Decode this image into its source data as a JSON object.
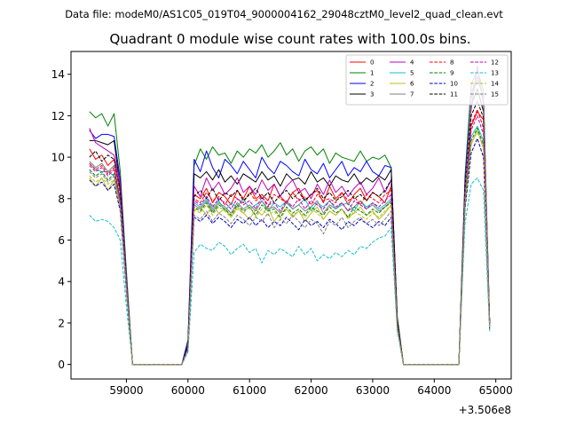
{
  "figure": {
    "suptitle": "Data file: modeM0/AS1C05_019T04_9000004162_29048cztM0_level2_quad_clean.evt",
    "title": "Quadrant 0 module wise count rates with 100.0s bins."
  },
  "chart_data": {
    "type": "line",
    "title": "Quadrant 0 module wise count rates with 100.0s bins.",
    "xlabel": "",
    "ylabel": "",
    "x_offset_label": "+3.506e8",
    "xlim": [
      58100,
      65250
    ],
    "ylim": [
      -0.7,
      15.1
    ],
    "xticks": [
      59000,
      60000,
      61000,
      62000,
      63000,
      64000,
      65000
    ],
    "yticks": [
      0,
      2,
      4,
      6,
      8,
      10,
      12,
      14
    ],
    "grid": false,
    "legend_position": "top-right",
    "x": [
      58400,
      58500,
      58600,
      58700,
      58800,
      58900,
      59000,
      59100,
      59200,
      59300,
      59400,
      59500,
      59600,
      59700,
      59800,
      59900,
      60000,
      60100,
      60200,
      60300,
      60400,
      60500,
      60600,
      60700,
      60800,
      60900,
      61000,
      61100,
      61200,
      61300,
      61400,
      61500,
      61600,
      61700,
      61800,
      61900,
      62000,
      62100,
      62200,
      62300,
      62400,
      62500,
      62600,
      62700,
      62800,
      62900,
      63000,
      63100,
      63200,
      63300,
      63400,
      63500,
      63600,
      63700,
      63800,
      63900,
      64000,
      64100,
      64200,
      64300,
      64400,
      64500,
      64600,
      64700,
      64800,
      64900
    ],
    "series": [
      {
        "name": "0",
        "color": "#ff0000",
        "dash": "solid",
        "values": [
          10.4,
          9.9,
          10.1,
          9.6,
          9.9,
          8.4,
          4.0,
          0.0,
          0.0,
          0.0,
          0.0,
          0.0,
          0.0,
          0.0,
          0.0,
          0.0,
          0.9,
          8.2,
          8.0,
          8.5,
          7.8,
          8.3,
          8.1,
          7.7,
          8.4,
          8.0,
          8.6,
          8.0,
          8.2,
          7.9,
          8.7,
          8.1,
          7.8,
          8.3,
          8.5,
          7.9,
          8.2,
          8.4,
          7.8,
          8.6,
          8.0,
          8.3,
          7.7,
          8.2,
          8.5,
          7.9,
          8.3,
          8.1,
          7.8,
          8.6,
          2.0,
          0.0,
          0.0,
          0.0,
          0.0,
          0.0,
          0.0,
          0.0,
          0.0,
          0.0,
          0.0,
          8.0,
          11.5,
          12.2,
          11.8,
          2.0
        ]
      },
      {
        "name": "1",
        "color": "#008000",
        "dash": "solid",
        "values": [
          12.2,
          11.9,
          12.1,
          11.5,
          12.1,
          9.3,
          4.5,
          0.0,
          0.0,
          0.0,
          0.0,
          0.0,
          0.0,
          0.0,
          0.0,
          0.0,
          1.2,
          9.6,
          10.4,
          9.9,
          10.5,
          10.1,
          10.2,
          9.7,
          10.3,
          10.0,
          10.4,
          10.2,
          10.6,
          10.0,
          10.3,
          10.7,
          10.1,
          10.4,
          9.8,
          10.3,
          10.5,
          10.1,
          10.4,
          9.7,
          10.2,
          10.0,
          9.9,
          9.8,
          10.3,
          9.8,
          10.0,
          9.9,
          10.1,
          9.5,
          2.3,
          0.0,
          0.0,
          0.0,
          0.0,
          0.0,
          0.0,
          0.0,
          0.0,
          0.0,
          0.0,
          9.1,
          13.5,
          14.2,
          13.2,
          2.0
        ]
      },
      {
        "name": "2",
        "color": "#0000ff",
        "dash": "solid",
        "values": [
          11.3,
          10.9,
          11.1,
          11.1,
          11.0,
          8.9,
          4.2,
          0.0,
          0.0,
          0.0,
          0.0,
          0.0,
          0.0,
          0.0,
          0.0,
          0.0,
          1.1,
          9.9,
          9.3,
          10.3,
          9.5,
          9.0,
          9.9,
          9.6,
          9.2,
          9.8,
          9.4,
          9.0,
          10.0,
          9.5,
          9.2,
          9.8,
          9.6,
          9.3,
          9.1,
          9.9,
          9.4,
          9.2,
          9.7,
          9.0,
          9.4,
          9.8,
          9.1,
          9.5,
          9.3,
          9.8,
          9.3,
          9.1,
          9.6,
          9.5,
          2.1,
          0.0,
          0.0,
          0.0,
          0.0,
          0.0,
          0.0,
          0.0,
          0.0,
          0.0,
          0.0,
          8.8,
          13.0,
          13.9,
          12.8,
          2.0
        ]
      },
      {
        "name": "3",
        "color": "#000000",
        "dash": "solid",
        "values": [
          10.8,
          10.8,
          10.7,
          10.6,
          10.8,
          8.5,
          4.0,
          0.0,
          0.0,
          0.0,
          0.0,
          0.0,
          0.0,
          0.0,
          0.0,
          0.0,
          0.9,
          9.2,
          9.0,
          9.3,
          8.9,
          9.4,
          8.8,
          9.1,
          8.7,
          9.2,
          9.0,
          8.8,
          9.3,
          8.9,
          9.1,
          8.6,
          9.2,
          8.9,
          9.0,
          8.7,
          9.3,
          8.8,
          9.0,
          8.6,
          9.1,
          8.9,
          8.8,
          9.2,
          8.7,
          9.0,
          8.8,
          9.1,
          8.9,
          9.4,
          2.2,
          0.0,
          0.0,
          0.0,
          0.0,
          0.0,
          0.0,
          0.0,
          0.0,
          0.0,
          0.0,
          8.5,
          12.5,
          13.3,
          12.2,
          2.0
        ]
      },
      {
        "name": "4",
        "color": "#bf00bf",
        "dash": "solid",
        "values": [
          11.4,
          10.7,
          10.5,
          10.3,
          10.1,
          8.7,
          4.1,
          0.0,
          0.0,
          0.0,
          0.0,
          0.0,
          0.0,
          0.0,
          0.0,
          0.0,
          0.8,
          8.6,
          8.1,
          9.0,
          8.4,
          8.8,
          8.2,
          8.5,
          9.0,
          8.3,
          8.6,
          8.2,
          8.9,
          8.4,
          8.7,
          8.1,
          8.6,
          8.9,
          8.3,
          8.5,
          8.0,
          8.7,
          8.2,
          8.9,
          8.3,
          8.6,
          8.1,
          8.5,
          8.8,
          8.2,
          8.5,
          9.0,
          8.3,
          8.9,
          2.0,
          0.0,
          0.0,
          0.0,
          0.0,
          0.0,
          0.0,
          0.0,
          0.0,
          0.0,
          0.0,
          8.7,
          12.3,
          14.4,
          12.5,
          2.0
        ]
      },
      {
        "name": "5",
        "color": "#17becf",
        "dash": "solid",
        "values": [
          9.7,
          9.4,
          9.3,
          9.3,
          9.1,
          7.9,
          3.8,
          0.0,
          0.0,
          0.0,
          0.0,
          0.0,
          0.0,
          0.0,
          0.0,
          0.0,
          0.8,
          7.8,
          7.6,
          8.0,
          7.5,
          7.9,
          7.4,
          7.8,
          7.6,
          8.0,
          7.5,
          7.7,
          7.9,
          7.4,
          7.8,
          7.6,
          7.9,
          7.5,
          7.7,
          8.0,
          7.4,
          7.8,
          7.6,
          7.9,
          7.5,
          7.7,
          7.8,
          7.4,
          7.9,
          7.6,
          7.8,
          7.5,
          7.7,
          8.0,
          1.9,
          0.0,
          0.0,
          0.0,
          0.0,
          0.0,
          0.0,
          0.0,
          0.0,
          0.0,
          0.0,
          7.9,
          11.0,
          11.5,
          10.8,
          1.9
        ]
      },
      {
        "name": "6",
        "color": "#bcbd22",
        "dash": "solid",
        "values": [
          9.0,
          8.6,
          9.0,
          8.4,
          8.9,
          7.5,
          3.6,
          0.0,
          0.0,
          0.0,
          0.0,
          0.0,
          0.0,
          0.0,
          0.0,
          0.0,
          0.7,
          7.4,
          7.6,
          7.2,
          7.7,
          7.3,
          7.5,
          7.1,
          7.6,
          7.3,
          7.0,
          7.5,
          7.2,
          7.6,
          6.9,
          7.3,
          7.5,
          7.1,
          7.4,
          6.9,
          7.3,
          7.6,
          7.0,
          7.4,
          7.2,
          7.5,
          7.1,
          7.3,
          7.6,
          7.2,
          7.4,
          7.0,
          7.3,
          7.7,
          1.8,
          0.0,
          0.0,
          0.0,
          0.0,
          0.0,
          0.0,
          0.0,
          0.0,
          0.0,
          0.0,
          7.6,
          10.6,
          11.3,
          10.4,
          1.8
        ]
      },
      {
        "name": "7",
        "color": "#7f7f7f",
        "dash": "solid",
        "values": [
          9.8,
          9.5,
          9.7,
          9.3,
          9.6,
          8.0,
          3.9,
          0.0,
          0.0,
          0.0,
          0.0,
          0.0,
          0.0,
          0.0,
          0.0,
          0.0,
          0.8,
          7.7,
          7.5,
          7.9,
          7.4,
          7.8,
          7.6,
          7.3,
          7.8,
          7.5,
          7.7,
          7.4,
          7.9,
          7.5,
          7.6,
          7.3,
          7.8,
          7.5,
          7.7,
          7.4,
          7.6,
          7.9,
          7.3,
          7.7,
          7.5,
          7.8,
          7.4,
          7.6,
          7.9,
          7.5,
          7.7,
          7.4,
          7.6,
          7.9,
          1.9,
          0.0,
          0.0,
          0.0,
          0.0,
          0.0,
          0.0,
          0.0,
          0.0,
          0.0,
          0.0,
          8.0,
          12.8,
          13.7,
          12.9,
          1.9
        ]
      },
      {
        "name": "8",
        "color": "#ff0000",
        "dash": "dashed",
        "values": [
          9.7,
          9.4,
          9.6,
          9.2,
          9.5,
          8.0,
          3.8,
          0.0,
          0.0,
          0.0,
          0.0,
          0.0,
          0.0,
          0.0,
          0.0,
          0.0,
          0.8,
          8.0,
          7.8,
          8.3,
          7.9,
          8.1,
          7.7,
          8.2,
          8.0,
          7.8,
          8.3,
          7.9,
          8.1,
          7.6,
          8.2,
          8.0,
          7.8,
          8.3,
          7.9,
          8.1,
          7.7,
          8.2,
          7.9,
          8.0,
          7.8,
          8.3,
          7.9,
          8.1,
          7.7,
          8.2,
          8.0,
          7.8,
          8.2,
          8.4,
          2.0,
          0.0,
          0.0,
          0.0,
          0.0,
          0.0,
          0.0,
          0.0,
          0.0,
          0.0,
          0.0,
          8.3,
          11.6,
          12.3,
          11.4,
          2.0
        ]
      },
      {
        "name": "9",
        "color": "#008000",
        "dash": "dashed",
        "values": [
          9.4,
          9.1,
          9.3,
          8.9,
          9.2,
          7.8,
          3.7,
          0.0,
          0.0,
          0.0,
          0.0,
          0.0,
          0.0,
          0.0,
          0.0,
          0.0,
          0.7,
          7.6,
          7.4,
          7.8,
          7.3,
          7.7,
          7.5,
          7.2,
          7.7,
          7.4,
          7.6,
          7.2,
          7.7,
          7.4,
          7.5,
          7.1,
          7.6,
          7.3,
          7.5,
          7.2,
          7.6,
          7.4,
          7.2,
          7.6,
          7.3,
          7.5,
          7.1,
          7.6,
          7.4,
          7.2,
          7.5,
          7.3,
          7.6,
          7.8,
          1.8,
          0.0,
          0.0,
          0.0,
          0.0,
          0.0,
          0.0,
          0.0,
          0.0,
          0.0,
          0.0,
          7.8,
          10.8,
          11.4,
          10.6,
          1.8
        ]
      },
      {
        "name": "10",
        "color": "#0000bf",
        "dash": "dashed",
        "values": [
          8.9,
          8.6,
          8.8,
          8.4,
          8.7,
          7.4,
          3.5,
          0.0,
          0.0,
          0.0,
          0.0,
          0.0,
          0.0,
          0.0,
          0.0,
          0.0,
          0.7,
          7.1,
          6.9,
          7.2,
          6.8,
          7.1,
          6.9,
          6.6,
          7.0,
          6.8,
          7.1,
          6.7,
          7.0,
          6.6,
          6.9,
          6.7,
          7.1,
          6.8,
          6.5,
          7.0,
          6.7,
          6.9,
          6.6,
          7.0,
          6.8,
          6.5,
          6.9,
          6.7,
          7.0,
          6.8,
          6.6,
          6.9,
          6.7,
          7.1,
          1.7,
          0.0,
          0.0,
          0.0,
          0.0,
          0.0,
          0.0,
          0.0,
          0.0,
          0.0,
          0.0,
          7.5,
          10.2,
          10.9,
          10.0,
          1.7
        ]
      },
      {
        "name": "11",
        "color": "#000000",
        "dash": "dashed",
        "values": [
          10.0,
          10.3,
          9.8,
          10.1,
          9.9,
          8.3,
          3.9,
          0.0,
          0.0,
          0.0,
          0.0,
          0.0,
          0.0,
          0.0,
          0.0,
          0.0,
          0.8,
          8.1,
          8.4,
          8.0,
          8.5,
          7.9,
          8.3,
          8.1,
          8.4,
          7.9,
          8.2,
          8.5,
          8.0,
          8.3,
          7.8,
          8.2,
          8.4,
          8.0,
          8.3,
          7.9,
          8.2,
          8.5,
          8.0,
          8.3,
          7.9,
          8.1,
          8.4,
          8.0,
          8.2,
          7.9,
          8.3,
          8.1,
          8.4,
          8.9,
          2.1,
          0.0,
          0.0,
          0.0,
          0.0,
          0.0,
          0.0,
          0.0,
          0.0,
          0.0,
          0.0,
          8.6,
          12.0,
          12.7,
          11.9,
          2.0
        ]
      },
      {
        "name": "12",
        "color": "#bf00bf",
        "dash": "dashed",
        "values": [
          9.6,
          9.3,
          9.5,
          9.1,
          9.4,
          7.9,
          3.8,
          0.0,
          0.0,
          0.0,
          0.0,
          0.0,
          0.0,
          0.0,
          0.0,
          0.0,
          0.8,
          7.9,
          7.7,
          8.1,
          7.6,
          8.0,
          7.8,
          7.5,
          8.0,
          7.7,
          7.9,
          7.5,
          8.1,
          7.7,
          7.8,
          7.4,
          7.9,
          7.6,
          8.0,
          7.5,
          7.9,
          7.7,
          7.5,
          7.9,
          7.6,
          7.8,
          7.4,
          7.9,
          7.7,
          7.5,
          7.8,
          7.6,
          7.9,
          8.2,
          1.9,
          0.0,
          0.0,
          0.0,
          0.0,
          0.0,
          0.0,
          0.0,
          0.0,
          0.0,
          0.0,
          8.2,
          11.3,
          12.0,
          11.1,
          1.9
        ]
      },
      {
        "name": "13",
        "color": "#17becf",
        "dash": "dashed",
        "values": [
          7.2,
          6.9,
          7.0,
          6.9,
          6.6,
          6.0,
          2.8,
          0.0,
          0.0,
          0.0,
          0.0,
          0.0,
          0.0,
          0.0,
          0.0,
          0.0,
          0.6,
          5.4,
          5.8,
          5.6,
          5.5,
          5.9,
          5.7,
          5.3,
          5.6,
          5.8,
          5.4,
          5.6,
          4.9,
          5.5,
          5.3,
          5.6,
          5.4,
          5.2,
          5.7,
          5.3,
          5.6,
          5.0,
          5.3,
          5.1,
          5.4,
          5.2,
          5.5,
          5.3,
          5.7,
          5.6,
          5.9,
          6.1,
          6.2,
          6.6,
          1.6,
          0.0,
          0.0,
          0.0,
          0.0,
          0.0,
          0.0,
          0.0,
          0.0,
          0.0,
          0.0,
          6.8,
          8.7,
          9.0,
          8.4,
          1.6
        ]
      },
      {
        "name": "14",
        "color": "#bcbd22",
        "dash": "dashed",
        "values": [
          9.1,
          8.8,
          9.0,
          8.7,
          8.9,
          7.6,
          3.6,
          0.0,
          0.0,
          0.0,
          0.0,
          0.0,
          0.0,
          0.0,
          0.0,
          0.0,
          0.7,
          7.5,
          7.3,
          7.7,
          7.2,
          7.6,
          7.4,
          7.1,
          7.5,
          7.3,
          7.6,
          7.1,
          7.5,
          7.2,
          7.4,
          7.0,
          7.5,
          7.2,
          7.4,
          7.1,
          7.5,
          7.3,
          7.0,
          7.4,
          7.2,
          7.5,
          7.0,
          7.4,
          7.2,
          7.0,
          7.3,
          7.1,
          7.4,
          7.7,
          1.8,
          0.0,
          0.0,
          0.0,
          0.0,
          0.0,
          0.0,
          0.0,
          0.0,
          0.0,
          0.0,
          7.7,
          10.7,
          11.2,
          10.5,
          1.8
        ]
      },
      {
        "name": "15",
        "color": "#7f7f7f",
        "dash": "dashed",
        "values": [
          9.3,
          9.0,
          9.2,
          8.8,
          9.1,
          7.7,
          3.7,
          0.0,
          0.0,
          0.0,
          0.0,
          0.0,
          0.0,
          0.0,
          0.0,
          0.0,
          0.7,
          7.2,
          7.0,
          7.4,
          6.9,
          7.3,
          7.1,
          6.8,
          7.2,
          7.0,
          6.7,
          7.1,
          6.9,
          7.3,
          6.6,
          7.0,
          6.8,
          7.2,
          6.9,
          6.6,
          7.0,
          6.8,
          6.3,
          6.9,
          6.7,
          7.1,
          6.6,
          6.9,
          7.1,
          6.8,
          7.0,
          6.7,
          7.0,
          7.4,
          1.8,
          0.0,
          0.0,
          0.0,
          0.0,
          0.0,
          0.0,
          0.0,
          0.0,
          0.0,
          0.0,
          7.9,
          13.2,
          13.9,
          13.0,
          1.8
        ]
      }
    ]
  }
}
